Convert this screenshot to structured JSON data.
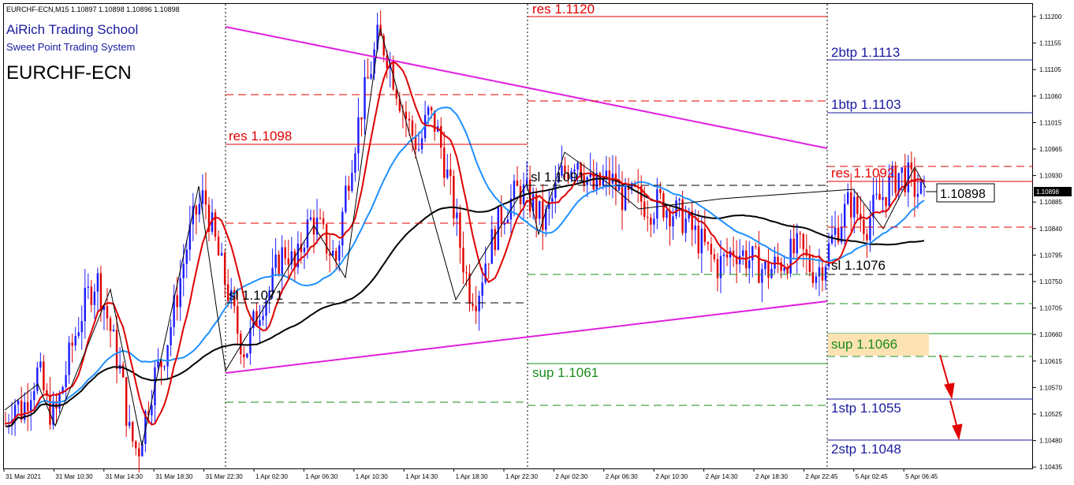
{
  "header": {
    "symbol_line": "EURCHF-ECN,M15  1.10897 1.10898 1.10896 1.10898",
    "school": "AiRich Trading School",
    "system": "Sweet Point Trading System",
    "instrument": "EURCHF-ECN"
  },
  "price_axis": {
    "ticks": [
      "1.11200",
      "1.11155",
      "1.11105",
      "1.11060",
      "1.11015",
      "1.10965",
      "1.10930",
      "1.10885",
      "1.10840",
      "1.10795",
      "1.10750",
      "1.10705",
      "1.10660",
      "1.10615",
      "1.10570",
      "1.10525",
      "1.10480",
      "1.10435"
    ],
    "current_price_tag": "1.10898"
  },
  "time_axis": {
    "ticks": [
      "31 Mar 2021",
      "31 Mar 10:30",
      "31 Mar 14:30",
      "31 Mar 18:30",
      "31 Mar 22:30",
      "1 Apr 02:30",
      "1 Apr 06:30",
      "1 Apr 10:30",
      "1 Apr 14:30",
      "1 Apr 18:30",
      "1 Apr 22:30",
      "2 Apr 02:30",
      "2 Apr 06:30",
      "2 Apr 10:30",
      "2 Apr 14:30",
      "2 Apr 18:30",
      "2 Apr 22:45",
      "5 Apr 02:45",
      "5 Apr 06:45"
    ]
  },
  "annotations": {
    "res_1120": "res 1.1120",
    "res_1098": "res 1.1098",
    "sl_1091": "sl 1.1091",
    "res_1092": "res 1.1092",
    "sl_1071": "sl 1.1071",
    "sl_1076": "sl 1.1076",
    "sup_1066": "sup 1.1066",
    "sup_1061": "sup 1.1061",
    "btp2": "2btp 1.1113",
    "btp1": "1btp 1.1103",
    "stp1": "1stp 1.1055",
    "stp2": "2stp 1.1048",
    "price_box": "1.10898"
  },
  "colors": {
    "candle_up": "#1a1aff",
    "candle_down": "#e00000",
    "ma_fast": "#e00000",
    "ma_mid": "#1e90ff",
    "ma_slow": "#000000",
    "trendline": "#e020e0",
    "resistance": "#e00000",
    "support": "#1a8c1a",
    "target": "#1a1aa0",
    "highlight": "#fde3b3"
  },
  "chart_data": {
    "type": "candlestick",
    "title": "EURCHF-ECN,M15",
    "ylim": [
      1.10425,
      1.11215
    ],
    "close_path": [
      1.105,
      1.1054,
      1.1052,
      1.1056,
      1.1059,
      1.1053,
      1.1051,
      1.1057,
      1.1063,
      1.1068,
      1.1072,
      1.1075,
      1.107,
      1.1064,
      1.1058,
      1.1048,
      1.1045,
      1.1052,
      1.1058,
      1.1061,
      1.1067,
      1.1074,
      1.1081,
      1.1086,
      1.1089,
      1.1083,
      1.1077,
      1.1072,
      1.1066,
      1.1062,
      1.1067,
      1.1071,
      1.1073,
      1.1078,
      1.108,
      1.1076,
      1.1082,
      1.1085,
      1.1083,
      1.108,
      1.1078,
      1.1089,
      1.1097,
      1.1104,
      1.111,
      1.1116,
      1.1114,
      1.1109,
      1.1104,
      1.11,
      1.1097,
      1.1103,
      1.1101,
      1.1095,
      1.1088,
      1.108,
      1.1073,
      1.1072,
      1.1078,
      1.1082,
      1.1086,
      1.1088,
      1.109,
      1.1089,
      1.1087,
      1.1084,
      1.1088,
      1.1092,
      1.1094,
      1.1096,
      1.1093,
      1.109,
      1.1091,
      1.1092,
      1.109,
      1.1088,
      1.1089,
      1.1088,
      1.1087,
      1.1088,
      1.1087,
      1.1086,
      1.1085,
      1.1083,
      1.1081,
      1.1079,
      1.1077,
      1.1078,
      1.108,
      1.1079,
      1.1078,
      1.1077,
      1.1076,
      1.1077,
      1.1078,
      1.1079,
      1.108,
      1.1077,
      1.1076,
      1.1078,
      1.1082,
      1.1085,
      1.1088,
      1.1086,
      1.1084,
      1.1087,
      1.1089,
      1.1091,
      1.1093,
      1.1092,
      1.109,
      1.1089
    ]
  }
}
